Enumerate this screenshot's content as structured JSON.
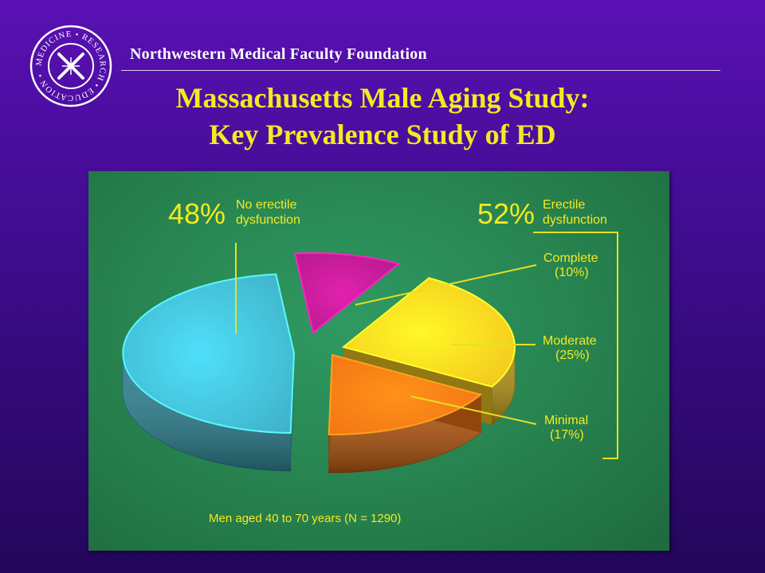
{
  "header": {
    "seal_text": "MEDICINE • RESEARCH • EDUCATION •",
    "org_name": "Northwestern Medical Faculty Foundation",
    "title_line1": "Massachusetts Male Aging Study:",
    "title_line2": "Key Prevalence Study of ED"
  },
  "chart_data": {
    "type": "pie",
    "title": "",
    "slices": [
      {
        "label": "No erectile dysfunction",
        "value": 48,
        "pct_text": "48%",
        "color": "#3fb2c8"
      },
      {
        "label": "Complete",
        "value": 10,
        "pct_text": "(10%)",
        "color": "#b41a8c"
      },
      {
        "label": "Moderate",
        "value": 25,
        "pct_text": "(25%)",
        "color": "#f3c61e"
      },
      {
        "label": "Minimal",
        "value": 17,
        "pct_text": "(17%)",
        "color": "#f27414"
      }
    ],
    "group": {
      "label_line1": "Erectile",
      "label_line2": "dysfunction",
      "value": 52,
      "pct_text": "52%"
    },
    "no_ed_label_line1": "No erectile",
    "no_ed_label_line2": "dysfunction",
    "footnote": "Men aged 40 to 70 years (N = 1290)",
    "colors": {
      "panel": "#267f4c",
      "annotation": "#f4ea22"
    }
  }
}
